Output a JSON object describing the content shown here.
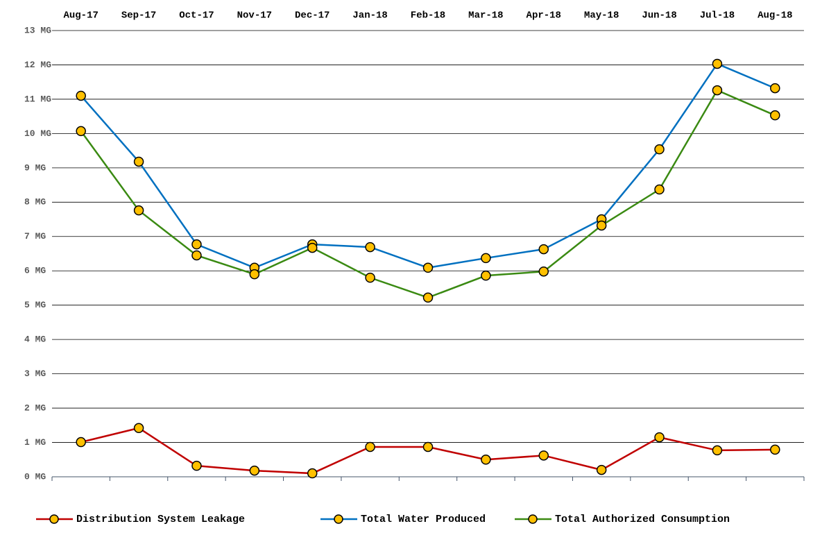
{
  "chart_data": {
    "type": "line",
    "categories": [
      "Aug-17",
      "Sep-17",
      "Oct-17",
      "Nov-17",
      "Dec-17",
      "Jan-18",
      "Feb-18",
      "Mar-18",
      "Apr-18",
      "May-18",
      "Jun-18",
      "Jul-18",
      "Aug-18"
    ],
    "series": [
      {
        "name": "Distribution System Leakage",
        "color": "#c00000",
        "values": [
          1.01,
          1.42,
          0.32,
          0.18,
          0.1,
          0.87,
          0.87,
          0.5,
          0.62,
          0.2,
          1.15,
          0.77,
          0.79
        ]
      },
      {
        "name": "Total Water Produced",
        "color": "#0070c0",
        "values": [
          11.1,
          9.18,
          6.77,
          6.09,
          6.77,
          6.69,
          6.09,
          6.37,
          6.63,
          7.5,
          9.54,
          12.03,
          11.32
        ]
      },
      {
        "name": "Total Authorized Consumption",
        "color": "#3a8a12",
        "values": [
          10.07,
          7.76,
          6.45,
          5.9,
          6.67,
          5.8,
          5.22,
          5.86,
          5.98,
          7.32,
          8.37,
          11.26,
          10.53
        ]
      }
    ],
    "marker_color": "#ffc000",
    "ylim": [
      0,
      13
    ],
    "yticks": [
      {
        "value": 0,
        "label": "0 MG"
      },
      {
        "value": 1,
        "label": "1 MG"
      },
      {
        "value": 2,
        "label": "2 MG"
      },
      {
        "value": 3,
        "label": "3 MG"
      },
      {
        "value": 4,
        "label": "4 MG"
      },
      {
        "value": 5,
        "label": "5 MG"
      },
      {
        "value": 6,
        "label": "6 MG"
      },
      {
        "value": 7,
        "label": "7 MG"
      },
      {
        "value": 8,
        "label": "8 MG"
      },
      {
        "value": 9,
        "label": "9 MG"
      },
      {
        "value": 10,
        "label": "10 MG"
      },
      {
        "value": 11,
        "label": "11 MG"
      },
      {
        "value": 12,
        "label": "12 MG"
      },
      {
        "value": 13,
        "label": "13 MG"
      }
    ],
    "grid": true,
    "legend": "bottom"
  }
}
